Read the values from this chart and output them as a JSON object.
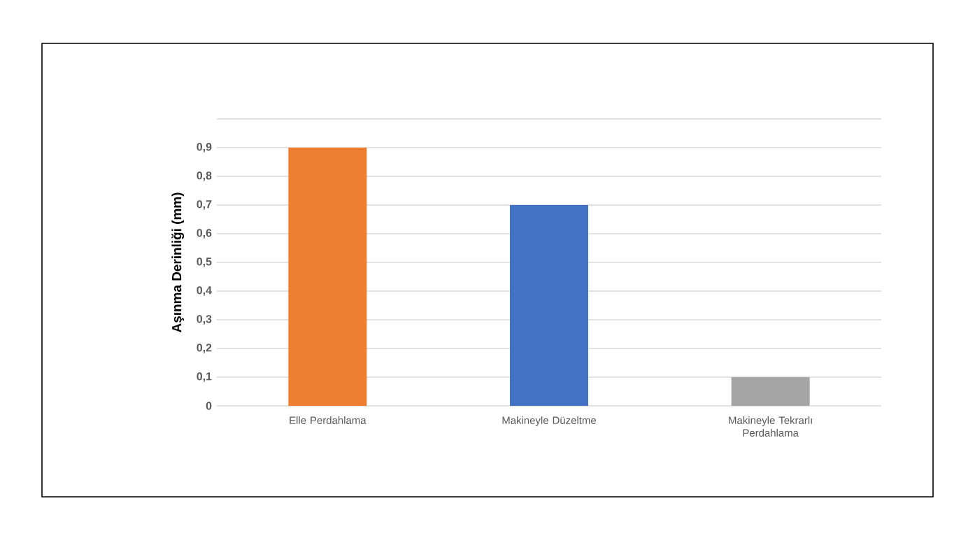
{
  "chart_data": {
    "type": "bar",
    "ylabel": "Aşınma Derinliği (mm)",
    "categories": [
      "Elle Perdahlama",
      "Makineyle Düzeltme",
      "Makineyle Tekrarlı Perdahlama"
    ],
    "values": [
      0.9,
      0.7,
      0.1
    ],
    "colors": [
      "#ed7d31",
      "#4472c4",
      "#a5a5a5"
    ],
    "ylim": [
      0,
      1
    ],
    "yticks": [
      0,
      {
        "value": 0.1,
        "label": "0,1"
      },
      {
        "value": 0.2,
        "label": "0,2"
      },
      {
        "value": 0.3,
        "label": "0,3"
      },
      {
        "value": 0.4,
        "label": "0,4"
      },
      {
        "value": 0.5,
        "label": "0,5"
      },
      {
        "value": 0.6,
        "label": "0,6"
      },
      {
        "value": 0.7,
        "label": "0,7"
      },
      {
        "value": 0.8,
        "label": "0,8"
      },
      {
        "value": 0.9,
        "label": "0,9"
      },
      {
        "value": 1,
        "label": null
      }
    ],
    "grid": "y"
  }
}
